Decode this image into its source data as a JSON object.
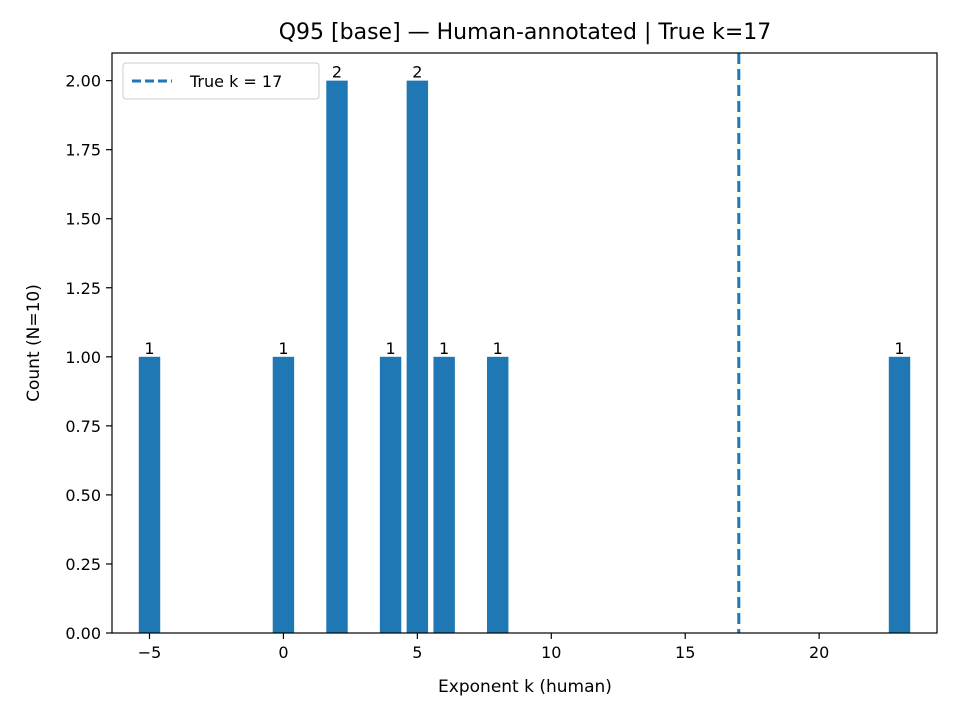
{
  "chart_data": {
    "type": "bar",
    "title": "Q95 [base] — Human-annotated | True k=17",
    "xlabel": "Exponent k (human)",
    "ylabel": "Count (N=10)",
    "xlim": [
      -6.4,
      24.4
    ],
    "ylim": [
      0,
      2.1
    ],
    "x": [
      -5,
      0,
      2,
      4,
      5,
      6,
      8,
      23
    ],
    "values": [
      1,
      1,
      2,
      1,
      2,
      1,
      1,
      1
    ],
    "bar_labels": [
      "1",
      "1",
      "2",
      "1",
      "2",
      "1",
      "1",
      "1"
    ],
    "x_ticks": [
      -5,
      0,
      5,
      10,
      15,
      20
    ],
    "x_tick_labels": [
      "−5",
      "0",
      "5",
      "10",
      "15",
      "20"
    ],
    "y_ticks": [
      0,
      0.25,
      0.5,
      0.75,
      1.0,
      1.25,
      1.5,
      1.75,
      2.0
    ],
    "y_tick_labels": [
      "0.00",
      "0.25",
      "0.50",
      "0.75",
      "1.00",
      "1.25",
      "1.50",
      "1.75",
      "2.00"
    ],
    "bar_color": "#1f77b4",
    "reference_line": {
      "x": 17,
      "label": "True k = 17",
      "color": "#1f77b4",
      "style": "dashed"
    },
    "legend": {
      "entries": [
        "True k = 17"
      ],
      "placement": "top-left"
    },
    "grid": false
  }
}
